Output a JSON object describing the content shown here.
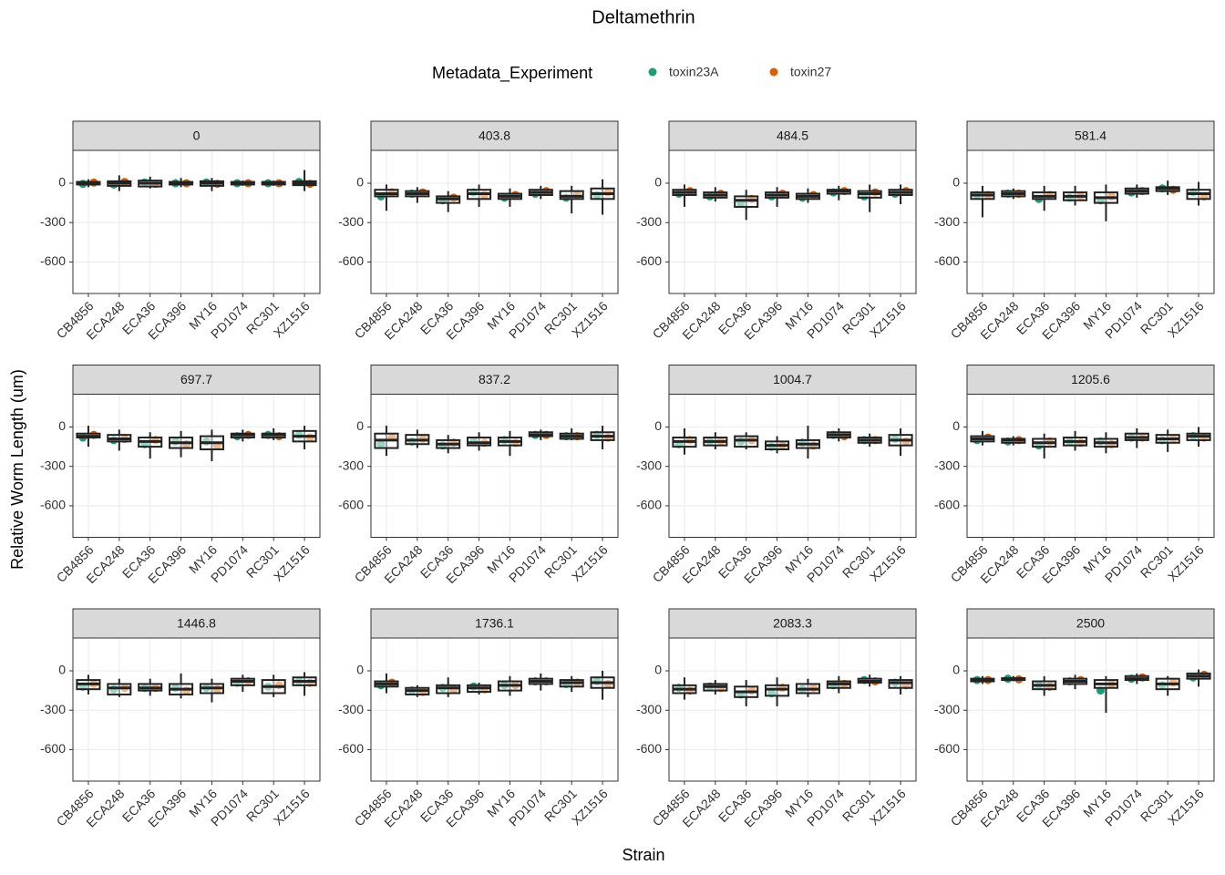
{
  "chart_data": {
    "type": "boxplot",
    "title": "Deltamethrin",
    "legend_title": "Metadata_Experiment",
    "xlabel": "Strain",
    "ylabel": "Relative Worm Length (um)",
    "categories": [
      "CB4856",
      "ECA248",
      "ECA36",
      "ECA396",
      "MY16",
      "PD1074",
      "RC301",
      "XZ1516"
    ],
    "ylim": [
      -840,
      250
    ],
    "yticks": [
      0,
      -300,
      -600
    ],
    "grid": true,
    "series": [
      {
        "name": "toxin23A",
        "color": "#1b9e77"
      },
      {
        "name": "toxin27",
        "color": "#d95f02"
      }
    ],
    "panels": [
      {
        "label": "0",
        "boxes": [
          [
            -30,
            -10,
            0,
            10,
            30
          ],
          [
            -60,
            -20,
            0,
            15,
            60
          ],
          [
            -40,
            -25,
            0,
            20,
            50
          ],
          [
            -30,
            -10,
            0,
            10,
            40
          ],
          [
            -60,
            -20,
            0,
            15,
            40
          ],
          [
            -20,
            -10,
            0,
            10,
            20
          ],
          [
            -20,
            -10,
            0,
            10,
            20
          ],
          [
            -60,
            -15,
            0,
            15,
            100
          ]
        ],
        "series_values": [
          [
            -5,
            -10,
            5,
            0,
            5,
            0,
            0,
            10
          ],
          [
            5,
            10,
            -5,
            0,
            -5,
            0,
            0,
            -5
          ]
        ]
      },
      {
        "label": "403.8",
        "boxes": [
          [
            -210,
            -100,
            -80,
            -50,
            -10
          ],
          [
            -150,
            -100,
            -80,
            -60,
            -30
          ],
          [
            -220,
            -150,
            -120,
            -100,
            -60
          ],
          [
            -180,
            -120,
            -80,
            -50,
            -10
          ],
          [
            -180,
            -120,
            -100,
            -80,
            -40
          ],
          [
            -120,
            -90,
            -70,
            -50,
            -20
          ],
          [
            -230,
            -120,
            -100,
            -60,
            -20
          ],
          [
            -240,
            -120,
            -80,
            -40,
            30
          ]
        ],
        "series_values": [
          [
            -100,
            -80,
            -130,
            -70,
            -110,
            -80,
            -110,
            -90
          ],
          [
            -70,
            -70,
            -110,
            -90,
            -90,
            -60,
            -90,
            -70
          ]
        ]
      },
      {
        "label": "484.5",
        "boxes": [
          [
            -180,
            -90,
            -70,
            -50,
            -10
          ],
          [
            -140,
            -110,
            -90,
            -70,
            -30
          ],
          [
            -280,
            -180,
            -130,
            -100,
            -50
          ],
          [
            -180,
            -110,
            -90,
            -70,
            -30
          ],
          [
            -150,
            -120,
            -100,
            -80,
            -40
          ],
          [
            -130,
            -80,
            -60,
            -50,
            -20
          ],
          [
            -220,
            -110,
            -80,
            -60,
            -10
          ],
          [
            -160,
            -90,
            -70,
            -50,
            -10
          ]
        ],
        "series_values": [
          [
            -80,
            -100,
            -150,
            -100,
            -110,
            -70,
            -100,
            -80
          ],
          [
            -60,
            -80,
            -120,
            -80,
            -90,
            -60,
            -70,
            -60
          ]
        ]
      },
      {
        "label": "581.4",
        "boxes": [
          [
            -260,
            -120,
            -90,
            -70,
            -20
          ],
          [
            -120,
            -100,
            -80,
            -60,
            -40
          ],
          [
            -210,
            -120,
            -100,
            -70,
            -20
          ],
          [
            -170,
            -130,
            -100,
            -70,
            -20
          ],
          [
            -290,
            -150,
            -110,
            -70,
            -10
          ],
          [
            -110,
            -80,
            -60,
            -40,
            -10
          ],
          [
            -90,
            -60,
            -40,
            -30,
            20
          ],
          [
            -170,
            -120,
            -80,
            -50,
            10
          ]
        ],
        "series_values": [
          [
            -90,
            -80,
            -120,
            -110,
            -130,
            -70,
            -40,
            -70
          ],
          [
            -90,
            -80,
            -90,
            -100,
            -100,
            -60,
            -50,
            -100
          ]
        ]
      },
      {
        "label": "697.7",
        "boxes": [
          [
            -150,
            -80,
            -70,
            -50,
            10
          ],
          [
            -180,
            -110,
            -90,
            -60,
            -20
          ],
          [
            -240,
            -150,
            -110,
            -80,
            -40
          ],
          [
            -230,
            -160,
            -120,
            -80,
            -30
          ],
          [
            -260,
            -170,
            -120,
            -70,
            -20
          ],
          [
            -110,
            -80,
            -60,
            -50,
            -20
          ],
          [
            -100,
            -80,
            -60,
            -50,
            -10
          ],
          [
            -170,
            -110,
            -70,
            -30,
            10
          ]
        ],
        "series_values": [
          [
            -80,
            -100,
            -130,
            -110,
            -110,
            -70,
            -60,
            -60
          ],
          [
            -60,
            -90,
            -100,
            -130,
            -140,
            -60,
            -70,
            -80
          ]
        ]
      },
      {
        "label": "837.2",
        "boxes": [
          [
            -220,
            -160,
            -100,
            -50,
            10
          ],
          [
            -160,
            -130,
            -100,
            -60,
            -20
          ],
          [
            -200,
            -160,
            -130,
            -100,
            -60
          ],
          [
            -180,
            -140,
            -120,
            -80,
            -40
          ],
          [
            -220,
            -140,
            -110,
            -80,
            -30
          ],
          [
            -100,
            -70,
            -60,
            -40,
            -20
          ],
          [
            -100,
            -90,
            -70,
            -50,
            -10
          ],
          [
            -170,
            -100,
            -70,
            -40,
            10
          ]
        ],
        "series_values": [
          [
            -130,
            -110,
            -140,
            -110,
            -100,
            -60,
            -70,
            -60
          ],
          [
            -80,
            -90,
            -120,
            -120,
            -120,
            -60,
            -70,
            -80
          ]
        ]
      },
      {
        "label": "1004.7",
        "boxes": [
          [
            -210,
            -150,
            -110,
            -80,
            -10
          ],
          [
            -170,
            -140,
            -110,
            -80,
            -40
          ],
          [
            -170,
            -150,
            -100,
            -70,
            -40
          ],
          [
            -200,
            -170,
            -140,
            -110,
            -70
          ],
          [
            -240,
            -160,
            -130,
            -100,
            10
          ],
          [
            -110,
            -80,
            -60,
            -40,
            -10
          ],
          [
            -150,
            -120,
            -100,
            -80,
            -50
          ],
          [
            -220,
            -140,
            -100,
            -60,
            -10
          ]
        ],
        "series_values": [
          [
            -130,
            -110,
            -110,
            -150,
            -120,
            -60,
            -100,
            -90
          ],
          [
            -100,
            -110,
            -100,
            -140,
            -140,
            -70,
            -100,
            -110
          ]
        ]
      },
      {
        "label": "1205.6",
        "boxes": [
          [
            -140,
            -110,
            -90,
            -70,
            -30
          ],
          [
            -140,
            -120,
            -100,
            -90,
            -70
          ],
          [
            -240,
            -150,
            -120,
            -90,
            -50
          ],
          [
            -180,
            -140,
            -110,
            -80,
            -30
          ],
          [
            -200,
            -150,
            -120,
            -90,
            -40
          ],
          [
            -160,
            -100,
            -80,
            -50,
            -10
          ],
          [
            -190,
            -120,
            -90,
            -60,
            -20
          ],
          [
            -150,
            -100,
            -70,
            -50,
            0
          ]
        ],
        "series_values": [
          [
            -100,
            -110,
            -140,
            -110,
            -110,
            -80,
            -100,
            -70
          ],
          [
            -80,
            -100,
            -110,
            -120,
            -130,
            -80,
            -90,
            -80
          ]
        ]
      },
      {
        "label": "1446.8",
        "boxes": [
          [
            -180,
            -140,
            -100,
            -70,
            -30
          ],
          [
            -200,
            -180,
            -130,
            -100,
            -60
          ],
          [
            -190,
            -150,
            -130,
            -100,
            -60
          ],
          [
            -210,
            -180,
            -140,
            -100,
            -20
          ],
          [
            -240,
            -170,
            -130,
            -100,
            -60
          ],
          [
            -160,
            -110,
            -80,
            -60,
            -30
          ],
          [
            -200,
            -170,
            -120,
            -70,
            -30
          ],
          [
            -190,
            -110,
            -80,
            -50,
            -10
          ]
        ],
        "series_values": [
          [
            -120,
            -140,
            -130,
            -130,
            -130,
            -90,
            -120,
            -80
          ],
          [
            -100,
            -130,
            -130,
            -150,
            -140,
            -80,
            -110,
            -90
          ]
        ]
      },
      {
        "label": "1736.1",
        "boxes": [
          [
            -170,
            -120,
            -100,
            -80,
            -20
          ],
          [
            -200,
            -180,
            -150,
            -130,
            -110
          ],
          [
            -200,
            -170,
            -130,
            -110,
            -50
          ],
          [
            -180,
            -160,
            -130,
            -110,
            -90
          ],
          [
            -190,
            -150,
            -110,
            -80,
            -40
          ],
          [
            -150,
            -100,
            -80,
            -60,
            -20
          ],
          [
            -160,
            -120,
            -90,
            -70,
            -40
          ],
          [
            -220,
            -130,
            -90,
            -50,
            0
          ]
        ],
        "series_values": [
          [
            -110,
            -150,
            -130,
            -120,
            -110,
            -80,
            -100,
            -80
          ],
          [
            -90,
            -160,
            -140,
            -140,
            -110,
            -80,
            -90,
            -100
          ]
        ]
      },
      {
        "label": "2083.3",
        "boxes": [
          [
            -220,
            -170,
            -140,
            -110,
            -50
          ],
          [
            -180,
            -150,
            -120,
            -100,
            -70
          ],
          [
            -270,
            -200,
            -160,
            -120,
            -70
          ],
          [
            -270,
            -190,
            -140,
            -110,
            -50
          ],
          [
            -200,
            -170,
            -140,
            -100,
            -60
          ],
          [
            -170,
            -130,
            -100,
            -80,
            -40
          ],
          [
            -120,
            -90,
            -80,
            -60,
            -30
          ],
          [
            -180,
            -130,
            -90,
            -70,
            -40
          ]
        ],
        "series_values": [
          [
            -130,
            -120,
            -180,
            -170,
            -140,
            -110,
            -70,
            -90
          ],
          [
            -150,
            -130,
            -150,
            -130,
            -130,
            -100,
            -80,
            -110
          ]
        ]
      },
      {
        "label": "2500",
        "boxes": [
          [
            -100,
            -80,
            -70,
            -60,
            -40
          ],
          [
            -80,
            -70,
            -60,
            -55,
            -40
          ],
          [
            -190,
            -140,
            -110,
            -80,
            -40
          ],
          [
            -140,
            -100,
            -80,
            -60,
            -30
          ],
          [
            -320,
            -130,
            -100,
            -70,
            -40
          ],
          [
            -100,
            -70,
            -60,
            -40,
            -20
          ],
          [
            -190,
            -140,
            -100,
            -60,
            -40
          ],
          [
            -120,
            -60,
            -40,
            -20,
            10
          ]
        ],
        "series_values": [
          [
            -70,
            -60,
            -110,
            -80,
            -150,
            -60,
            -110,
            -50
          ],
          [
            -70,
            -65,
            -120,
            -70,
            -100,
            -50,
            -90,
            -30
          ]
        ]
      }
    ]
  }
}
